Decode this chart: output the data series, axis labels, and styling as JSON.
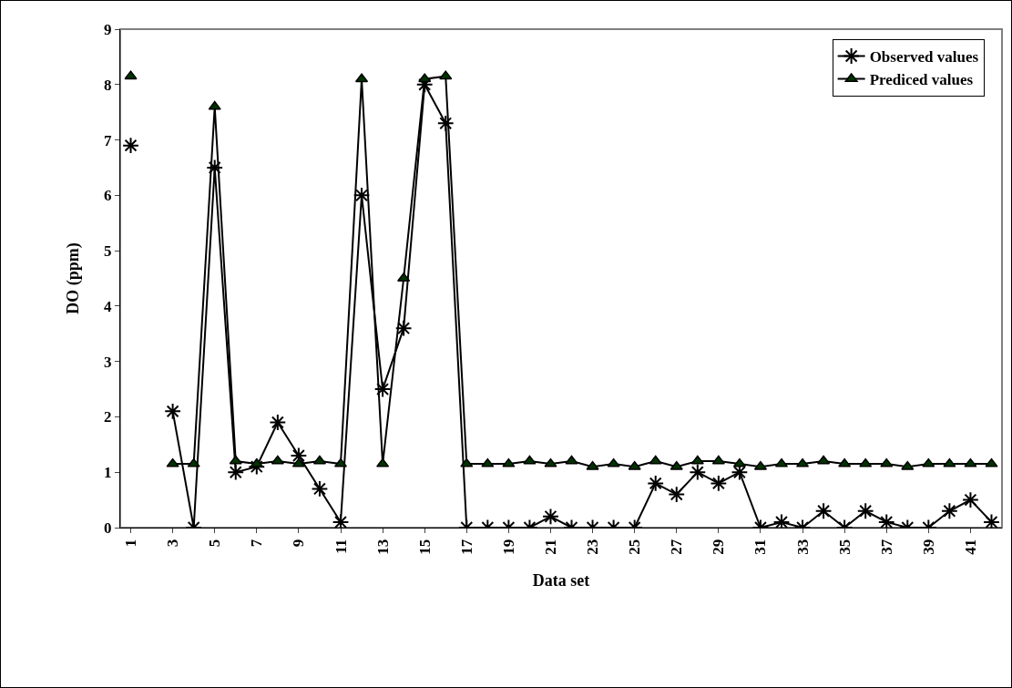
{
  "chart_data": {
    "type": "line",
    "xlabel": "Data set",
    "ylabel": "DO (ppm)",
    "categories": [
      "1",
      null,
      "3",
      null,
      "5",
      null,
      "7",
      null,
      "9",
      null,
      "11",
      null,
      "13",
      null,
      "15",
      null,
      "17",
      null,
      "19",
      null,
      "21",
      null,
      "23",
      null,
      "25",
      null,
      "27",
      null,
      "29",
      null,
      "31",
      null,
      "33",
      null,
      "35",
      null,
      "37",
      null,
      "39",
      null,
      "41",
      null
    ],
    "series": [
      {
        "name": "Observed values",
        "color": "#000000",
        "marker": "cross",
        "values": [
          6.9,
          null,
          2.1,
          0,
          6.5,
          1.0,
          1.1,
          1.9,
          1.3,
          0.7,
          0.1,
          6.0,
          2.5,
          3.6,
          8.0,
          7.3,
          0,
          0,
          0,
          0,
          0.2,
          0,
          0,
          0,
          0,
          0.8,
          0.6,
          1.0,
          0.8,
          1.0,
          0,
          0.1,
          0,
          0.3,
          0,
          0.3,
          0.1,
          0,
          0,
          0.3,
          0.5,
          0.1
        ]
      },
      {
        "name": "Prediced values",
        "color": "#003300",
        "marker": "triangle",
        "values": [
          8.15,
          null,
          1.15,
          1.15,
          7.6,
          1.2,
          1.15,
          1.2,
          1.15,
          1.2,
          1.15,
          8.1,
          1.15,
          4.5,
          8.1,
          8.15,
          1.15,
          1.15,
          1.15,
          1.2,
          1.15,
          1.2,
          1.1,
          1.15,
          1.1,
          1.2,
          1.1,
          1.2,
          1.2,
          1.15,
          1.1,
          1.15,
          1.15,
          1.2,
          1.15,
          1.15,
          1.15,
          1.1,
          1.15,
          1.15,
          1.15,
          1.15
        ]
      }
    ],
    "ylim": [
      0,
      9
    ],
    "yticks": [
      0,
      1,
      2,
      3,
      4,
      5,
      6,
      7,
      8,
      9
    ],
    "grid": false,
    "legend": "top right",
    "line_style": "solid"
  }
}
